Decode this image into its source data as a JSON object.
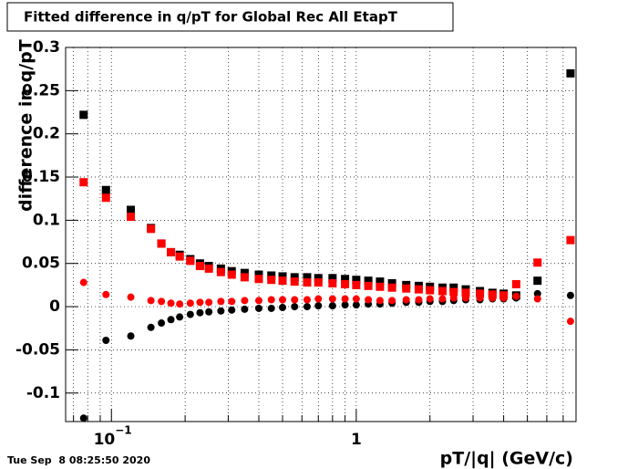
{
  "chart_data": {
    "type": "scatter",
    "title": "Fitted difference in q/pT for Global Rec All EtapT",
    "x_label": "pT/|q| (GeV/c)",
    "y_label": "difference in q/pT",
    "date": "Tue Sep  8 08:25:50 2020",
    "x_log": true,
    "grid": true,
    "xlim": [
      0.065,
      7.9
    ],
    "ylim": [
      -0.133,
      0.3
    ],
    "xticks": [
      {
        "value": 0.1,
        "label": "10",
        "exponent": "−1"
      },
      1
    ],
    "xminor": [
      0.07,
      0.08,
      0.09,
      0.2,
      0.3,
      0.4,
      0.5,
      0.6,
      0.7,
      0.8,
      0.9,
      2,
      3,
      4,
      5,
      6,
      7
    ],
    "yticks": [
      -0.1,
      -0.05,
      0,
      0.05,
      0.1,
      0.15,
      0.2,
      0.25,
      0.3
    ],
    "x": [
      0.077,
      0.095,
      0.12,
      0.145,
      0.16,
      0.175,
      0.19,
      0.21,
      0.23,
      0.25,
      0.28,
      0.31,
      0.35,
      0.4,
      0.45,
      0.5,
      0.56,
      0.63,
      0.7,
      0.8,
      0.9,
      1.0,
      1.12,
      1.25,
      1.4,
      1.6,
      1.8,
      2.0,
      2.25,
      2.5,
      2.8,
      3.2,
      3.6,
      4.0,
      4.5,
      5.5,
      7.5
    ],
    "series": [
      {
        "color": "#000000",
        "marker": "square",
        "values": [
          0.222,
          0.135,
          0.112,
          0.091,
          0.073,
          0.063,
          0.06,
          0.055,
          0.05,
          0.047,
          0.044,
          0.041,
          0.039,
          0.037,
          0.036,
          0.035,
          0.034,
          0.034,
          0.033,
          0.033,
          0.032,
          0.031,
          0.03,
          0.029,
          0.027,
          0.025,
          0.024,
          0.023,
          0.022,
          0.022,
          0.02,
          0.018,
          0.016,
          0.015,
          0.013,
          0.03,
          0.27
        ]
      },
      {
        "color": "#ff0000",
        "marker": "square",
        "values": [
          0.144,
          0.126,
          0.104,
          0.09,
          0.073,
          0.063,
          0.058,
          0.053,
          0.047,
          0.044,
          0.04,
          0.037,
          0.034,
          0.032,
          0.031,
          0.03,
          0.029,
          0.028,
          0.028,
          0.027,
          0.026,
          0.025,
          0.024,
          0.023,
          0.022,
          0.021,
          0.02,
          0.019,
          0.018,
          0.017,
          0.016,
          0.015,
          0.014,
          0.013,
          0.026,
          0.051,
          0.077
        ]
      },
      {
        "color": "#000000",
        "marker": "circle",
        "values": [
          -0.129,
          -0.039,
          -0.034,
          -0.024,
          -0.019,
          -0.015,
          -0.012,
          -0.009,
          -0.007,
          -0.006,
          -0.005,
          -0.004,
          -0.003,
          -0.002,
          -0.002,
          -0.001,
          0.0,
          0.0,
          0.001,
          0.001,
          0.002,
          0.002,
          0.003,
          0.003,
          0.004,
          0.005,
          0.005,
          0.006,
          0.006,
          0.007,
          0.008,
          0.008,
          0.009,
          0.009,
          0.01,
          0.015,
          0.013
        ]
      },
      {
        "color": "#ff0000",
        "marker": "circle",
        "values": [
          0.028,
          0.014,
          0.011,
          0.007,
          0.006,
          0.004,
          0.003,
          0.004,
          0.005,
          0.005,
          0.006,
          0.006,
          0.007,
          0.007,
          0.008,
          0.008,
          0.008,
          0.008,
          0.009,
          0.009,
          0.009,
          0.009,
          0.008,
          0.007,
          0.007,
          0.008,
          0.008,
          0.009,
          0.009,
          0.01,
          0.01,
          0.01,
          0.01,
          0.01,
          0.012,
          0.009,
          -0.017
        ]
      }
    ]
  }
}
